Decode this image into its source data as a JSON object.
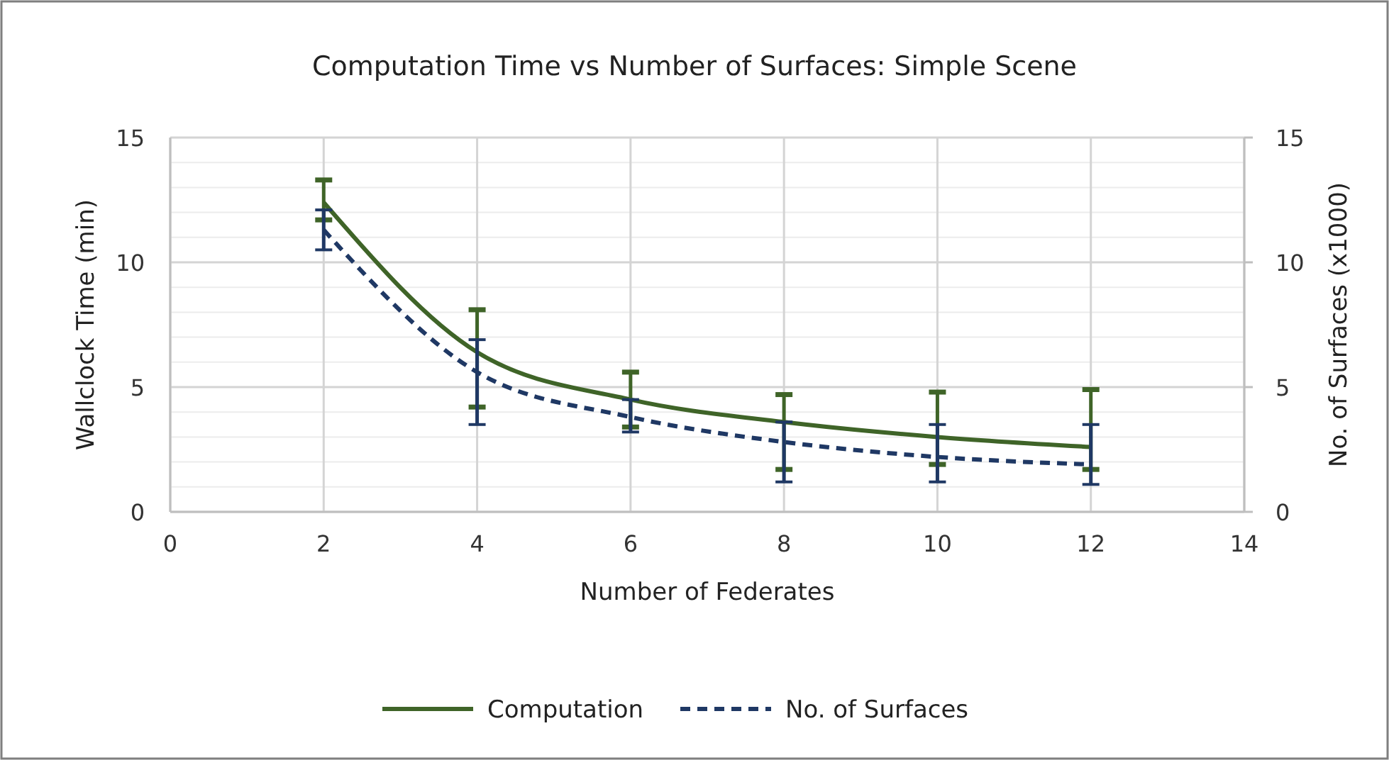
{
  "chart_data": {
    "type": "line",
    "title": "Computation Time vs Number of Surfaces: Simple Scene",
    "xlabel": "Number of Federates",
    "ylabel": "Wallclock Time (min)",
    "y2label": "No. of Surfaces (x1000)",
    "x": [
      2,
      4,
      6,
      8,
      10,
      12
    ],
    "xlim": [
      0,
      14
    ],
    "xticks": [
      0,
      2,
      4,
      6,
      8,
      10,
      12,
      14
    ],
    "ylim": [
      0,
      15
    ],
    "yticks": [
      0,
      {
        "value": 1,
        "label": null
      },
      {
        "value": 2,
        "label": null
      },
      {
        "value": 3,
        "label": null
      },
      {
        "value": 4,
        "label": null
      },
      5,
      {
        "value": 6,
        "label": null
      },
      {
        "value": 7,
        "label": null
      },
      {
        "value": 8,
        "label": null
      },
      {
        "value": 9,
        "label": null
      },
      10,
      {
        "value": 11,
        "label": null
      },
      {
        "value": 12,
        "label": null
      },
      {
        "value": 13,
        "label": null
      },
      {
        "value": 14,
        "label": null
      },
      15
    ],
    "y2lim": [
      0,
      15
    ],
    "y2ticks": [
      0,
      5,
      10,
      15
    ],
    "grid": true,
    "legend": "bottom",
    "marker": "none",
    "series": [
      {
        "name": "Computation",
        "color": "#3f6428",
        "line_style": "solid",
        "values": [
          12.4,
          6.4,
          4.5,
          3.6,
          3.0,
          2.6
        ],
        "errors": [
          [
            11.7,
            13.3
          ],
          [
            4.2,
            8.1
          ],
          [
            3.4,
            5.6
          ],
          [
            1.7,
            4.7
          ],
          [
            1.9,
            4.8
          ],
          [
            1.7,
            4.9
          ]
        ]
      },
      {
        "name": "No. of Surfaces",
        "color": "#1f3864",
        "line_style": "dashed",
        "axis": "y2",
        "values": [
          11.3,
          5.6,
          3.8,
          2.8,
          2.2,
          1.9
        ],
        "errors": [
          [
            10.5,
            12.1
          ],
          [
            3.5,
            6.9
          ],
          [
            3.2,
            4.5
          ],
          [
            1.2,
            3.6
          ],
          [
            1.2,
            3.5
          ],
          [
            1.1,
            3.5
          ]
        ]
      }
    ]
  }
}
